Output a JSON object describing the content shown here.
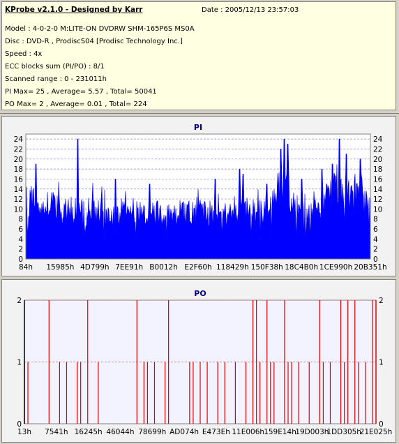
{
  "info": {
    "title": "KProbe v2.1.0 - Designed by Karr",
    "date": "Date : 2005/12/13 23:57:03",
    "model": "Model : 4-0-2-0 M:LITE-ON DVDRW SHM-165P6S MS0A",
    "disc": "Disc : DVD-R , ProdiscS04   [Prodisc Technology Inc.]",
    "speed": "Speed : 4x",
    "ecc": "ECC blocks sum (PI/PO) : 8/1",
    "range": "Scanned range : 0 - 231011h",
    "pi_stats": "PI Max= 25 , Average= 5.57 , Total= 50041",
    "po_stats": "PO Max= 2 , Average= 0.01 , Total= 224"
  },
  "colors": {
    "pi": "#0000ff",
    "po": "#dd0000",
    "plot_bg": "#f2f2f2",
    "grid": "#0000aa"
  },
  "chart_data": [
    {
      "type": "area",
      "title": "PI",
      "ylim": [
        0,
        25
      ],
      "yticks": [
        "0",
        "2",
        "4",
        "6",
        "8",
        "10",
        "12",
        "14",
        "16",
        "18",
        "20",
        "22",
        "24"
      ],
      "xticks": [
        "84h",
        "15985h",
        "4D799h",
        "7EE91h",
        "B0012h",
        "E2F60h",
        "118429h",
        "150F38h",
        "18C4B0h",
        "1CE990h",
        "20B351h"
      ],
      "profile": [
        [
          0,
          12
        ],
        [
          2,
          13
        ],
        [
          4,
          11
        ],
        [
          6,
          12
        ],
        [
          8,
          11
        ],
        [
          10,
          12
        ],
        [
          12,
          11
        ],
        [
          14,
          10
        ],
        [
          16,
          10
        ],
        [
          18,
          10
        ],
        [
          20,
          10
        ],
        [
          22,
          10
        ],
        [
          24,
          10
        ],
        [
          26,
          11
        ],
        [
          28,
          10
        ],
        [
          30,
          11
        ],
        [
          32,
          10
        ],
        [
          34,
          10
        ],
        [
          36,
          10
        ],
        [
          38,
          10
        ],
        [
          40,
          10
        ],
        [
          42,
          10
        ],
        [
          44,
          10
        ],
        [
          46,
          10
        ],
        [
          48,
          10
        ],
        [
          50,
          10
        ],
        [
          52,
          10
        ],
        [
          54,
          10
        ],
        [
          56,
          10
        ],
        [
          58,
          10
        ],
        [
          60,
          11
        ],
        [
          62,
          10
        ],
        [
          64,
          10
        ],
        [
          66,
          10
        ],
        [
          68,
          10
        ],
        [
          70,
          10
        ],
        [
          72,
          13
        ],
        [
          74,
          16
        ],
        [
          76,
          15
        ],
        [
          78,
          11
        ],
        [
          80,
          10
        ],
        [
          82,
          10
        ],
        [
          84,
          11
        ],
        [
          86,
          11
        ],
        [
          88,
          14
        ],
        [
          90,
          16
        ],
        [
          92,
          15
        ],
        [
          94,
          14
        ],
        [
          96,
          15
        ],
        [
          98,
          14
        ],
        [
          100,
          10
        ]
      ],
      "spikes": [
        [
          3,
          19
        ],
        [
          15,
          24
        ],
        [
          26,
          16
        ],
        [
          36,
          15
        ],
        [
          50,
          14
        ],
        [
          55,
          16
        ],
        [
          62,
          18
        ],
        [
          63,
          17
        ],
        [
          70,
          15
        ],
        [
          74,
          22
        ],
        [
          75,
          24
        ],
        [
          76,
          23
        ],
        [
          80,
          16
        ],
        [
          86,
          18
        ],
        [
          89,
          19
        ],
        [
          91,
          24
        ],
        [
          93,
          21
        ],
        [
          97,
          20
        ]
      ]
    },
    {
      "type": "bar",
      "title": "PO",
      "ylim": [
        0,
        2
      ],
      "yticks": [
        "0",
        "1",
        "2"
      ],
      "xticks": [
        "13h",
        "7541h",
        "16245h",
        "46044h",
        "78699h",
        "AD074h",
        "E473Eh",
        "11E006h",
        "159E14h",
        "19D003h",
        "1DD305h",
        "21E025h"
      ],
      "events": [
        [
          0,
          1
        ],
        [
          1,
          1
        ],
        [
          7,
          2
        ],
        [
          10,
          1
        ],
        [
          12,
          1
        ],
        [
          15,
          1
        ],
        [
          16,
          1
        ],
        [
          18,
          2
        ],
        [
          21,
          1
        ],
        [
          32,
          2
        ],
        [
          34,
          1
        ],
        [
          35,
          1
        ],
        [
          37,
          1
        ],
        [
          40,
          1
        ],
        [
          41,
          2
        ],
        [
          47,
          1
        ],
        [
          48,
          1
        ],
        [
          50,
          1
        ],
        [
          52,
          1
        ],
        [
          55,
          1
        ],
        [
          57,
          1
        ],
        [
          60,
          1
        ],
        [
          63,
          1
        ],
        [
          65,
          2
        ],
        [
          66,
          2
        ],
        [
          67,
          1
        ],
        [
          69,
          2
        ],
        [
          70,
          1
        ],
        [
          71,
          1
        ],
        [
          74,
          2
        ],
        [
          75,
          1
        ],
        [
          76,
          1
        ],
        [
          78,
          1
        ],
        [
          81,
          1
        ],
        [
          84,
          2
        ],
        [
          85,
          1
        ],
        [
          87,
          1
        ],
        [
          90,
          2
        ],
        [
          91,
          1
        ],
        [
          92,
          2
        ],
        [
          94,
          2
        ],
        [
          95,
          1
        ],
        [
          97,
          1
        ],
        [
          99,
          2
        ]
      ]
    }
  ]
}
